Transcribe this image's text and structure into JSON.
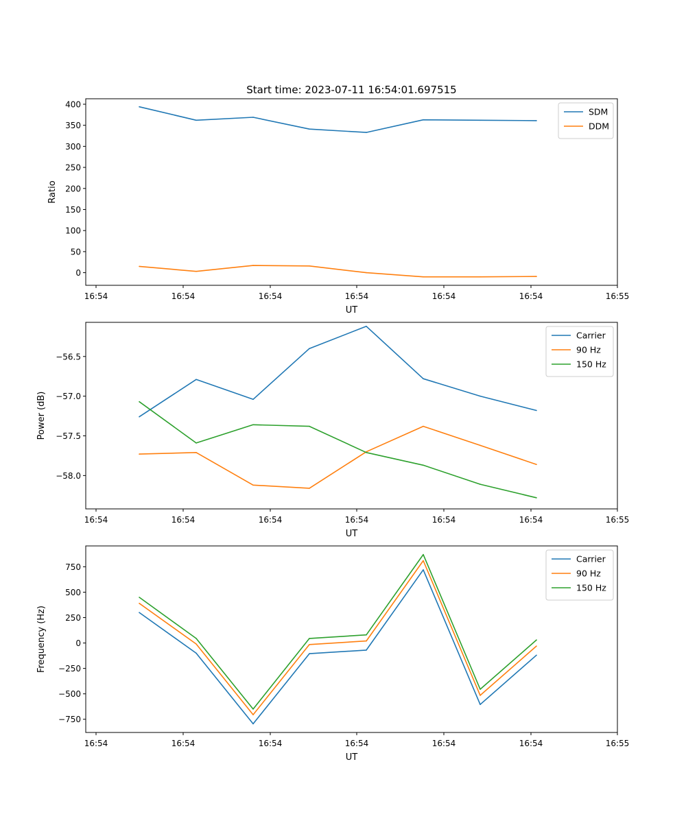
{
  "figure_title": "Start time: 2023-07-11 16:54:01.697515",
  "colors": {
    "blue": "#1f77b4",
    "orange": "#ff7f0e",
    "green": "#2ca02c"
  },
  "chart_data": [
    {
      "type": "line",
      "title": "Start time: 2023-07-11 16:54:01.697515",
      "xlabel": "UT",
      "ylabel": "Ratio",
      "x_ticks": [
        "16:54",
        "16:54",
        "16:54",
        "16:54",
        "16:54",
        "16:54",
        "16:55"
      ],
      "y_ticks": [
        0,
        50,
        100,
        150,
        200,
        250,
        300,
        350,
        400
      ],
      "y_tick_labels": [
        "0",
        "50",
        "100",
        "150",
        "200",
        "250",
        "300",
        "350",
        "400"
      ],
      "ylim": [
        -30,
        413
      ],
      "legend": "top-right",
      "series": [
        {
          "name": "SDM",
          "color": "#1f77b4",
          "values": [
            394,
            362,
            369,
            341,
            333,
            363,
            362,
            361
          ]
        },
        {
          "name": "DDM",
          "color": "#ff7f0e",
          "values": [
            15,
            3,
            17,
            16,
            0,
            -10,
            -10,
            -9
          ]
        }
      ]
    },
    {
      "type": "line",
      "xlabel": "UT",
      "ylabel": "Power (dB)",
      "x_ticks": [
        "16:54",
        "16:54",
        "16:54",
        "16:54",
        "16:54",
        "16:54",
        "16:55"
      ],
      "y_ticks": [
        -58.0,
        -57.5,
        -57.0,
        -56.5
      ],
      "y_tick_labels": [
        "−58.0",
        "−57.5",
        "−57.0",
        "−56.5"
      ],
      "ylim": [
        -58.42,
        -56.07
      ],
      "legend": "top-right",
      "series": [
        {
          "name": "Carrier",
          "color": "#1f77b4",
          "values": [
            -57.26,
            -56.79,
            -57.04,
            -56.4,
            -56.12,
            -56.78,
            -57.0,
            -57.18
          ]
        },
        {
          "name": "90 Hz",
          "color": "#ff7f0e",
          "values": [
            -57.73,
            -57.71,
            -58.12,
            -58.16,
            -57.7,
            -57.38,
            -57.62,
            -57.86
          ]
        },
        {
          "name": "150 Hz",
          "color": "#2ca02c",
          "values": [
            -57.07,
            -57.59,
            -57.36,
            -57.38,
            -57.71,
            -57.87,
            -58.11,
            -58.28
          ]
        }
      ]
    },
    {
      "type": "line",
      "xlabel": "UT",
      "ylabel": "Frequency (Hz)",
      "x_ticks": [
        "16:54",
        "16:54",
        "16:54",
        "16:54",
        "16:54",
        "16:54",
        "16:55"
      ],
      "y_ticks": [
        -750,
        -500,
        -250,
        0,
        250,
        500,
        750
      ],
      "y_tick_labels": [
        "−750",
        "−500",
        "−250",
        "0",
        "250",
        "500",
        "750"
      ],
      "ylim": [
        -880,
        955
      ],
      "legend": "top-right",
      "series": [
        {
          "name": "Carrier",
          "color": "#1f77b4",
          "values": [
            300,
            -100,
            -795,
            -105,
            -70,
            720,
            -605,
            -120
          ]
        },
        {
          "name": "90 Hz",
          "color": "#ff7f0e",
          "values": [
            390,
            -10,
            -705,
            -15,
            20,
            810,
            -515,
            -30
          ]
        },
        {
          "name": "150 Hz",
          "color": "#2ca02c",
          "values": [
            450,
            45,
            -650,
            45,
            80,
            870,
            -455,
            30
          ]
        }
      ]
    }
  ]
}
